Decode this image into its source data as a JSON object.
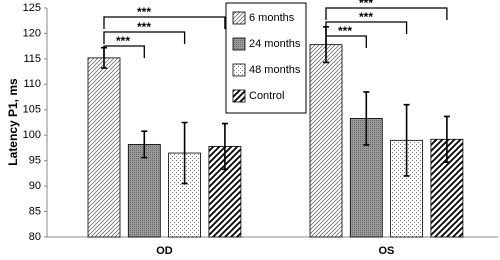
{
  "chart_data": {
    "type": "bar",
    "y_label": "Latency P1, ms",
    "categories": [
      "OD",
      "OS"
    ],
    "series": [
      {
        "name": "6 months",
        "values": [
          115.2,
          117.8
        ],
        "errors": [
          2.0,
          3.5
        ]
      },
      {
        "name": "24 months",
        "values": [
          98.2,
          103.3
        ],
        "errors": [
          2.6,
          5.2
        ]
      },
      {
        "name": "48 months",
        "values": [
          96.5,
          99.0
        ],
        "errors": [
          6.0,
          7.0
        ]
      },
      {
        "name": "Control",
        "values": [
          97.8,
          99.2
        ],
        "errors": [
          4.5,
          4.5
        ]
      }
    ],
    "significance": [
      "***",
      "***",
      "***",
      "***",
      "***",
      "***"
    ],
    "ylim": [
      80,
      125
    ],
    "yticks": [
      80,
      85,
      90,
      95,
      100,
      105,
      110,
      115,
      120,
      125
    ]
  }
}
